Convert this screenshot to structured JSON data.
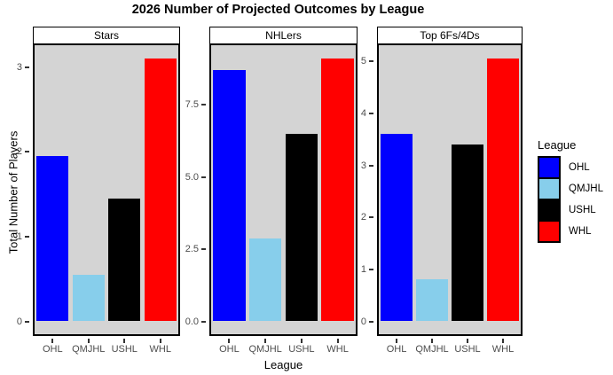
{
  "title": "2026 Number of Projected Outcomes by League",
  "y_axis_title": "Total Number of Players",
  "x_axis_title": "League",
  "legend": {
    "title": "League",
    "items": [
      {
        "label": "OHL",
        "color": "#0000FF"
      },
      {
        "label": "QMJHL",
        "color": "#87CEEB"
      },
      {
        "label": "USHL",
        "color": "#000000"
      },
      {
        "label": "WHL",
        "color": "#FF0000"
      }
    ]
  },
  "colors": {
    "panel_bg": "#D4D4D4",
    "strip_bg": "#FFFFFF",
    "border": "#000000",
    "axis_text": "#4D4D4D",
    "ohl_blue": "#0000FF",
    "qmjhl_lightblue": "#87CEEB",
    "ushl_black": "#000000",
    "whl_red": "#FF0000"
  },
  "chart_data": {
    "type": "bar",
    "title": "2026 Number of Projected Outcomes by League",
    "xlabel": "League",
    "ylabel": "Total Number of Players",
    "grid": false,
    "legend_position": "right",
    "legend_title": "League",
    "categories": [
      "OHL",
      "QMJHL",
      "USHL",
      "WHL"
    ],
    "series_colors": [
      "#0000FF",
      "#87CEEB",
      "#000000",
      "#FF0000"
    ],
    "facets": [
      {
        "label": "Stars",
        "values": [
          1.95,
          0.55,
          1.45,
          3.1
        ],
        "ymax": 3.1,
        "yticks": [
          {
            "value": 0,
            "label": "0"
          },
          {
            "value": 1,
            "label": "1"
          },
          {
            "value": 2,
            "label": "2"
          },
          {
            "value": 3,
            "label": "3"
          }
        ]
      },
      {
        "label": "NHLers",
        "values": [
          8.7,
          2.85,
          6.5,
          9.1
        ],
        "ymax": 9.1,
        "yticks": [
          {
            "value": 0,
            "label": "0.0"
          },
          {
            "value": 2.5,
            "label": "2.5"
          },
          {
            "value": 5,
            "label": "5.0"
          },
          {
            "value": 7.5,
            "label": "7.5"
          }
        ]
      },
      {
        "label": "Top 6Fs/4Ds",
        "values": [
          3.6,
          0.8,
          3.4,
          5.05
        ],
        "ymax": 5.05,
        "yticks": [
          {
            "value": 0,
            "label": "0"
          },
          {
            "value": 1,
            "label": "1"
          },
          {
            "value": 2,
            "label": "2"
          },
          {
            "value": 3,
            "label": "3"
          },
          {
            "value": 4,
            "label": "4"
          },
          {
            "value": 5,
            "label": "5"
          }
        ]
      }
    ]
  }
}
